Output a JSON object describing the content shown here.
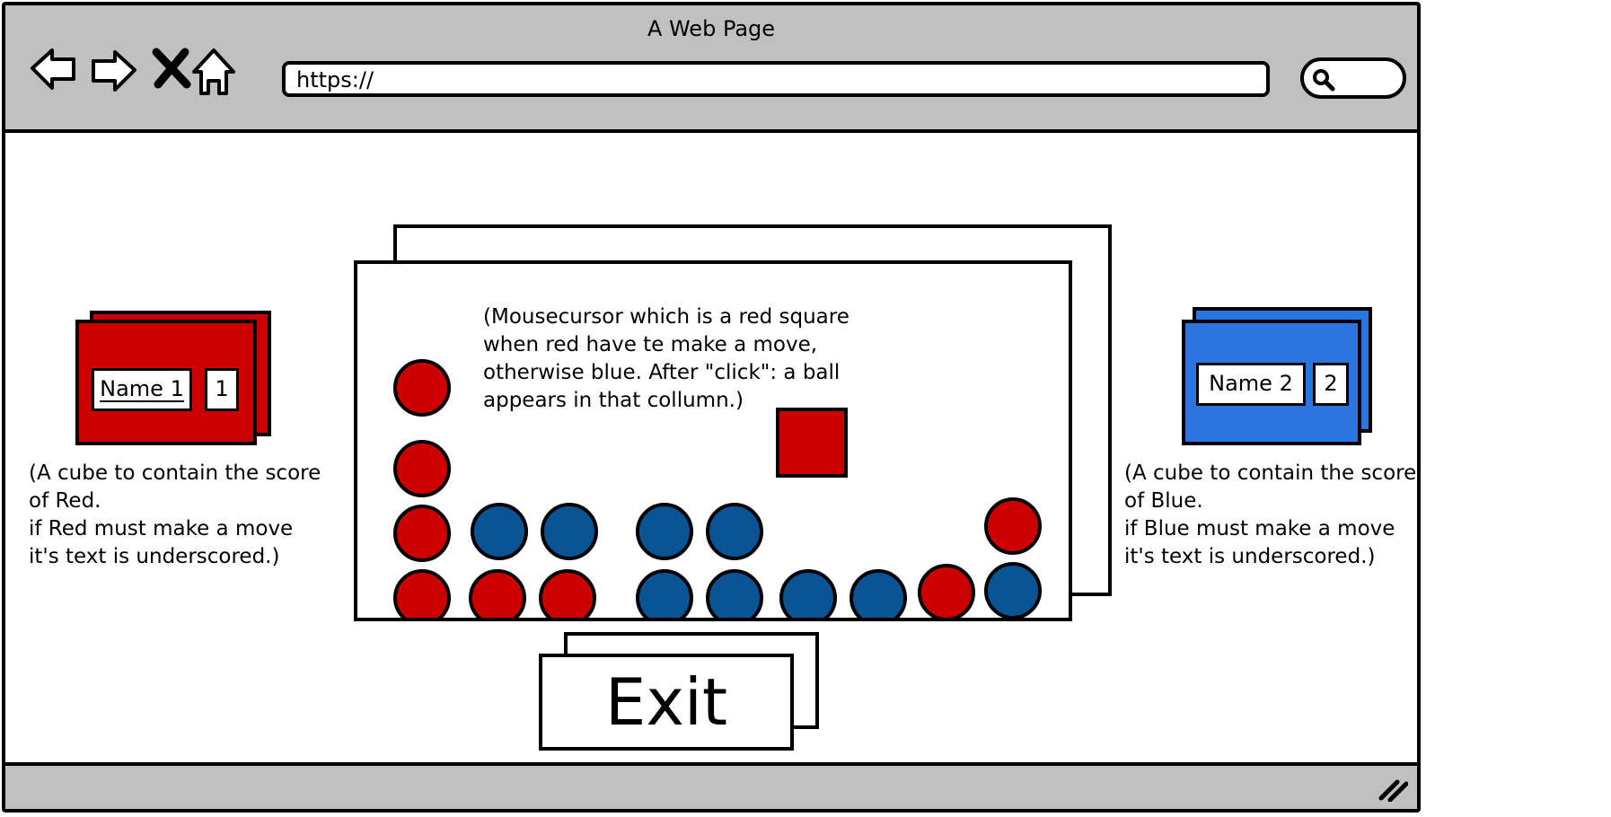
{
  "window": {
    "title": "A Web Page"
  },
  "url_bar": {
    "value": "https://"
  },
  "players": {
    "red": {
      "name": "Name 1",
      "score": "1",
      "color": "#cc0000",
      "note": "(A cube to contain the score\nof Red.\nif Red must make a move\nit's text is underscored.)"
    },
    "blue": {
      "name": "Name 2",
      "score": "2",
      "color": "#2c74e0",
      "note": "(A cube to contain the score\nof Blue.\nif Blue must make a move\nit's text is underscored.)"
    }
  },
  "board": {
    "note": "(Mousecursor which is a red square\nwhen red have te make a move,\notherwise blue. After \"click\": a ball\nappears in that collumn.)",
    "colors": {
      "red": "#cc0000",
      "blue": "#0a5394"
    }
  },
  "exit_button": {
    "label": "Exit"
  },
  "icons": [
    "back-arrow-icon",
    "forward-arrow-icon",
    "close-x-icon",
    "home-icon",
    "search-icon",
    "resize-grip-icon"
  ]
}
